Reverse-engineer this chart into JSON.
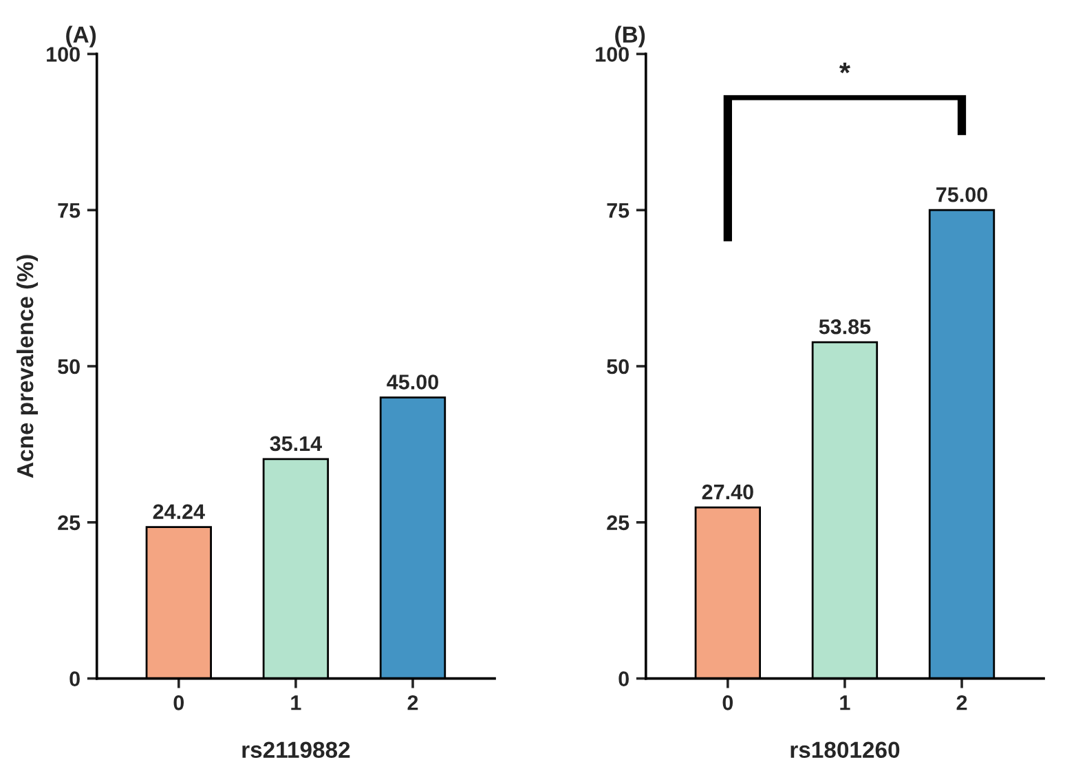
{
  "chart_data": [
    {
      "type": "bar",
      "title": "(A)",
      "xlabel": "rs2119882",
      "ylabel": "Acne prevalence (%)",
      "categories": [
        "0",
        "1",
        "2"
      ],
      "values": [
        24.24,
        35.14,
        45.0
      ],
      "colors": [
        "#f4a582",
        "#b3e3cd",
        "#4394c4"
      ],
      "value_labels": [
        "24.24",
        "35.14",
        "45.00"
      ],
      "ylim": [
        0,
        100
      ],
      "yticks": [
        0,
        25,
        50,
        75,
        100
      ],
      "grid": false,
      "legend": false
    },
    {
      "type": "bar",
      "title": "(B)",
      "xlabel": "rs1801260",
      "categories": [
        "0",
        "1",
        "2"
      ],
      "values": [
        27.4,
        53.85,
        75.0
      ],
      "colors": [
        "#f4a582",
        "#b3e3cd",
        "#4394c4"
      ],
      "value_labels": [
        "27.40",
        "53.85",
        "75.00"
      ],
      "ylim": [
        0,
        100
      ],
      "yticks": [
        0,
        25,
        50,
        75,
        100
      ],
      "grid": false,
      "legend": false,
      "annotations": [
        "*"
      ]
    }
  ]
}
